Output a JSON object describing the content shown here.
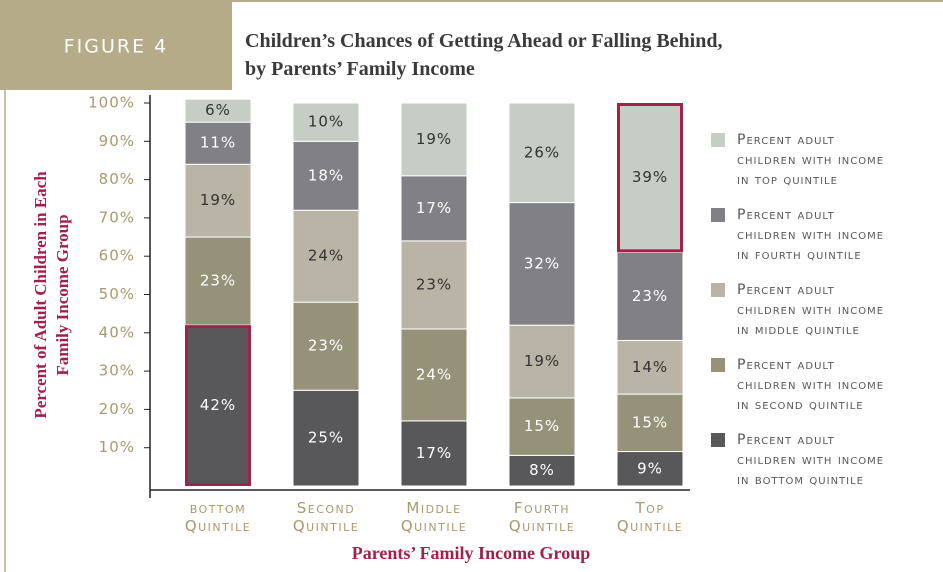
{
  "chart_data": {
    "type": "stacked_bar",
    "label": "FIGURE 4",
    "title": "Children’s Chances of Getting Ahead or Falling Behind, by Parents’ Family Income",
    "y_label": "Percent of Adult Children in Each Family Income Group",
    "x_label": "Parents’ Family Income Group",
    "categories": [
      "bottom Quintile",
      "Second Quintile",
      "Middle Quintile",
      "Fourth Quintile",
      "Top Quintile"
    ],
    "series": [
      {
        "name": "Percent adult children with income in bottom quintile",
        "color": "#58585a",
        "values": [
          42,
          25,
          17,
          8,
          9
        ],
        "value_labels": [
          "42%",
          "25%",
          "17%",
          "8%",
          "9%"
        ]
      },
      {
        "name": "Percent adult children with income in second quintile",
        "color": "#959279",
        "values": [
          23,
          23,
          24,
          15,
          15
        ],
        "value_labels": [
          "23%",
          "23%",
          "24%",
          "15%",
          "15%"
        ]
      },
      {
        "name": "Percent adult children with income in middle quintile",
        "color": "#b9b4a5",
        "values": [
          19,
          24,
          23,
          19,
          14
        ],
        "value_labels": [
          "19%",
          "24%",
          "23%",
          "19%",
          "14%"
        ]
      },
      {
        "name": "Percent adult children with income in fourth quintile",
        "color": "#808085",
        "values": [
          11,
          18,
          17,
          32,
          23
        ],
        "value_labels": [
          "11%",
          "18%",
          "17%",
          "32%",
          "23%"
        ]
      },
      {
        "name": "Percent adult children with income in top quintile",
        "color": "#c5cdc5",
        "values": [
          6,
          10,
          19,
          26,
          39
        ],
        "value_labels": [
          "6%",
          "10%",
          "19%",
          "26%",
          "39%"
        ]
      }
    ],
    "ylim": [
      0,
      100
    ],
    "yticks": [
      {
        "value": 10,
        "label": "10%"
      },
      {
        "value": 20,
        "label": "20%"
      },
      {
        "value": 30,
        "label": "30%"
      },
      {
        "value": 40,
        "label": "40%"
      },
      {
        "value": 50,
        "label": "50%"
      },
      {
        "value": 60,
        "label": "60%"
      },
      {
        "value": 70,
        "label": "70%"
      },
      {
        "value": 80,
        "label": "80%"
      },
      {
        "value": 90,
        "label": "90%"
      },
      {
        "value": 100,
        "label": "100%"
      }
    ],
    "highlights": [
      {
        "series": 0,
        "category": 0
      },
      {
        "series": 4,
        "category": 4
      }
    ],
    "highlight_color": "#a3204a"
  }
}
